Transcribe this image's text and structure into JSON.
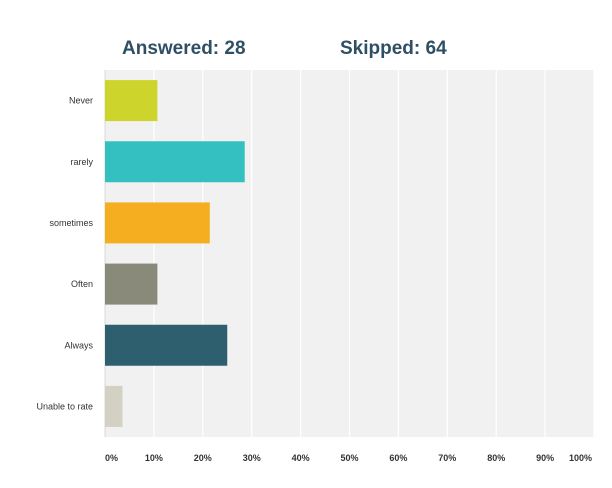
{
  "header": {
    "answered_label": "Answered:",
    "answered_count": "28",
    "skipped_label": "Skipped:",
    "skipped_count": "64"
  },
  "chart_data": {
    "type": "bar",
    "orientation": "horizontal",
    "title": "",
    "xlabel": "",
    "ylabel": "",
    "xlim": [
      0,
      100
    ],
    "grid": true,
    "categories": [
      "Never",
      "rarely",
      "sometimes",
      "Often",
      "Always",
      "Unable to rate"
    ],
    "values": [
      10.71,
      28.57,
      21.43,
      10.71,
      25.0,
      3.57
    ],
    "value_unit": "%",
    "colors": [
      "#cdd42b",
      "#34bfc0",
      "#f5ae1f",
      "#8a8a7a",
      "#2e5f6e",
      "#d3d1c3"
    ],
    "tick_values": [
      0,
      10,
      20,
      30,
      40,
      50,
      60,
      70,
      80,
      90,
      100
    ],
    "tick_labels": [
      "0%",
      "10%",
      "20%",
      "30%",
      "40%",
      "50%",
      "60%",
      "70%",
      "80%",
      "90%",
      "100%"
    ]
  },
  "colors": {
    "plot_background": "#f1f1f1",
    "gridline": "#ffffff",
    "header_text": "#2f4f64"
  }
}
